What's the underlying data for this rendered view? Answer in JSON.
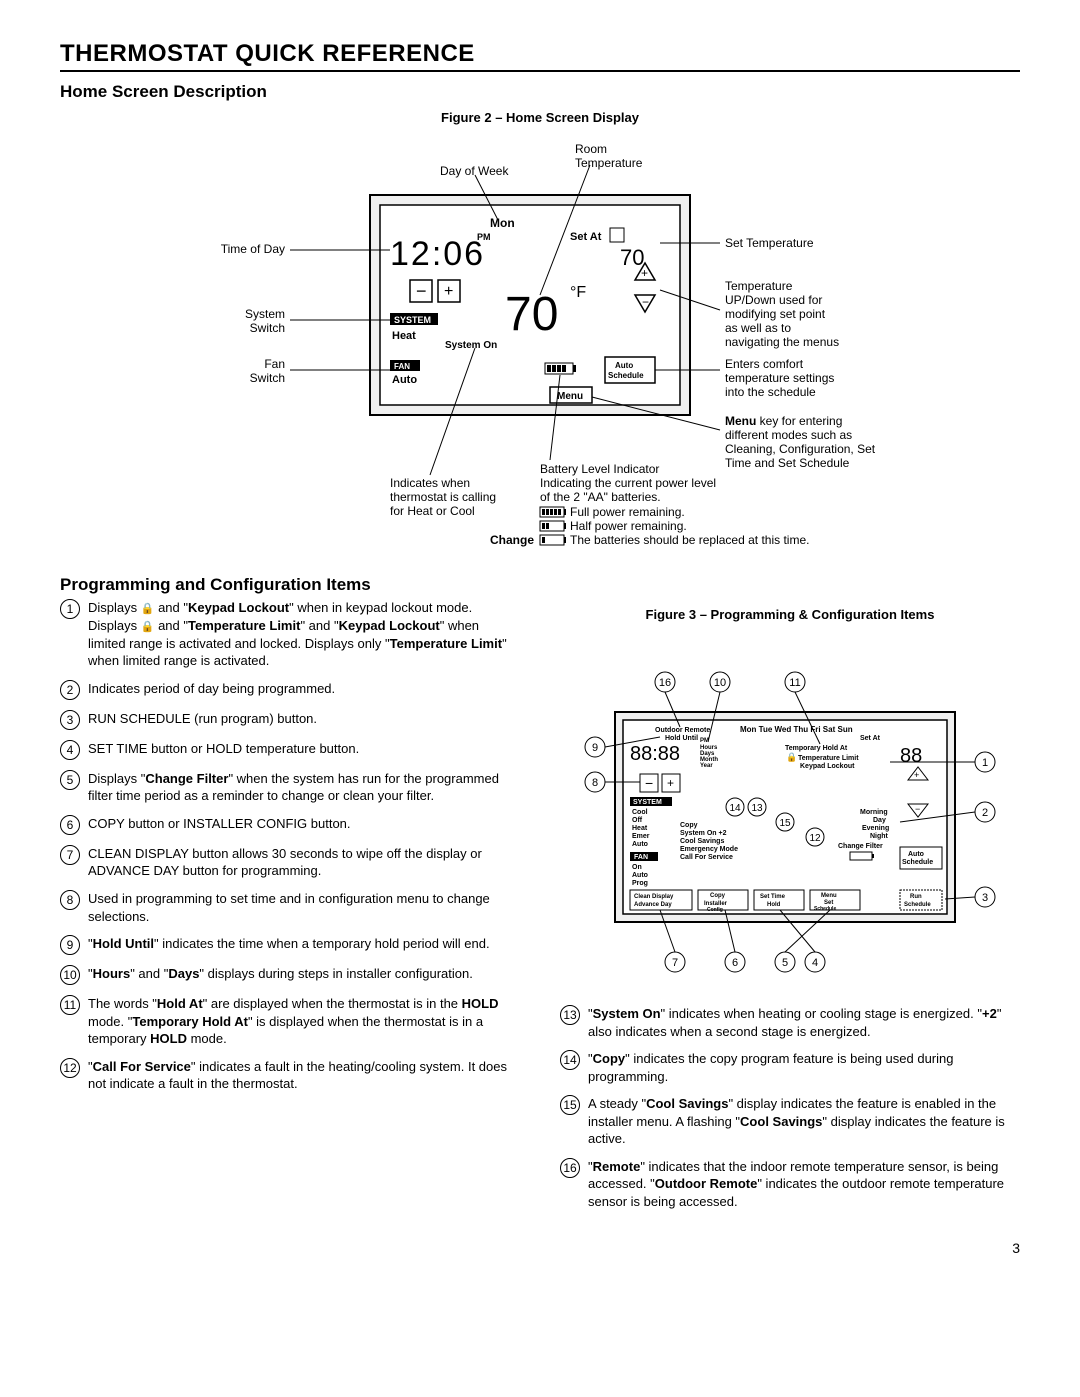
{
  "mainTitle": "THERMOSTAT QUICK REFERENCE",
  "section1Title": "Home Screen Description",
  "fig2Caption": "Figure 2 – Home Screen Display",
  "section2Title": "Programming and Configuration Items",
  "fig3Caption": "Figure 3 – Programming & Configuration Items",
  "pageNumber": "3",
  "fig2": {
    "labels": {
      "dayOfWeek": "Day of Week",
      "roomTemp": "Room\nTemperature",
      "timeOfDay": "Time of Day",
      "setTemp": "Set Temperature",
      "systemSwitch": "System\nSwitch",
      "tempUpDown": "Temperature\nUP/Down used for\nmodifying set point\nas well as to\nnavigating the menus",
      "fanSwitch": "Fan\nSwitch",
      "autoSched": "Enters comfort\ntemperature settings\ninto the schedule",
      "menuKey": "Menu key for entering\ndifferent modes such as\nCleaning, Configuration, Set\nTime and Set Schedule",
      "calling": "Indicates when\nthermostat is calling\nfor Heat or Cool",
      "battHead": "Battery Level Indicator\nIndicating the current power level\nof the 2 \"AA\" batteries.",
      "battFull": " Full power remaining.",
      "battHalf": " Half power remaining.",
      "battChange": " The batteries should be replaced at this time.",
      "changeWord": "Change"
    },
    "lcd": {
      "day": "Mon",
      "pm": "PM",
      "setAt": "Set At",
      "system": "SYSTEM",
      "heat": "Heat",
      "systemOn": "System On",
      "fan": "FAN",
      "auto": "Auto",
      "autoSchedule": "Auto\nSchedule",
      "menu": "Menu",
      "degF": "°F"
    }
  },
  "items": [
    {
      "n": "1",
      "html": "Displays <span class='lock-icon'></span> and \"<b>Keypad Lockout</b>\" when in keypad lockout mode.<br>Displays <span class='lock-icon'></span> and \"<b>Temperature Limit</b>\" and \"<b>Keypad Lockout</b>\" when limited range is activated and locked. Displays only \"<b>Temperature Limit</b>\" when limited range is activated."
    },
    {
      "n": "2",
      "html": "Indicates period of day being programmed."
    },
    {
      "n": "3",
      "html": "RUN SCHEDULE (run program) button."
    },
    {
      "n": "4",
      "html": "SET TIME button or HOLD temperature button."
    },
    {
      "n": "5",
      "html": "Displays \"<b>Change Filter</b>\" when the system has run for the programmed filter time period as a reminder to change or clean your filter."
    },
    {
      "n": "6",
      "html": "COPY button or INSTALLER CONFIG button."
    },
    {
      "n": "7",
      "html": "CLEAN DISPLAY button allows 30 seconds to wipe off the display or ADVANCE DAY button for programming."
    },
    {
      "n": "8",
      "html": "Used in programming to set time and in configuration menu to change selections."
    },
    {
      "n": "9",
      "html": "\"<b>Hold Until</b>\" indicates the time when a temporary hold period will end."
    },
    {
      "n": "10",
      "html": "\"<b>Hours</b>\" and \"<b>Days</b>\" displays during steps in installer configuration."
    },
    {
      "n": "11",
      "html": "The words \"<b>Hold At</b>\" are displayed when the thermostat is in the <b>HOLD</b> mode. \"<b>Temporary Hold At</b>\" is displayed when the thermostat is in a temporary <b>HOLD</b> mode."
    },
    {
      "n": "12",
      "html": "\"<b>Call For Service</b>\" indicates a fault in the heating/cooling system. It does not indicate a fault in the thermostat."
    }
  ],
  "itemsRight": [
    {
      "n": "13",
      "html": "\"<b>System On</b>\" indicates when heating or cooling stage is energized. \"<b>+2</b>\" also indicates when a second stage is energized."
    },
    {
      "n": "14",
      "html": "\"<b>Copy</b>\" indicates the copy program feature is being used during programming."
    },
    {
      "n": "15",
      "html": "A steady \"<b>Cool Savings</b>\" display indicates the feature is enabled in the installer menu. A flashing \"<b>Cool Savings</b>\" display indicates the feature is active."
    },
    {
      "n": "16",
      "html": "\"<b>Remote</b>\" indicates that the indoor remote temperature sensor, is being accessed. \"<b>Outdoor Remote</b>\" indicates the outdoor remote temperature sensor is being accessed."
    }
  ],
  "fig3": {
    "days": "Mon Tue Wed Thu Fri Sat Sun",
    "outdoorRemote": "Outdoor Remote",
    "holdUntil": "Hold Until",
    "pm": "PM",
    "hours": "Hours",
    "daysLbl": "Days",
    "month": "Month",
    "year": "Year",
    "setAt": "Set At",
    "tempHold": "Temporary Hold At",
    "tempLimit": "Temperature Limit",
    "keypadLock": "Keypad Lockout",
    "system": "SYSTEM",
    "cool": "Cool",
    "off": "Off",
    "heat": "Heat",
    "emer": "Emer",
    "auto": "Auto",
    "copy": "Copy",
    "systemOn2": "System On +2",
    "coolSavings": "Cool Savings",
    "emergencyMode": "Emergency Mode",
    "callForService": "Call For Service",
    "morning": "Morning",
    "day": "Day",
    "evening": "Evening",
    "night": "Night",
    "changeFilter": "Change Filter",
    "fan": "FAN",
    "on": "On",
    "prog": "Prog",
    "autoSchedule": "Auto\nSchedule",
    "cleanDisplay": "Clean Display",
    "advanceDay": "Advance Day",
    "copyBtn": "Copy",
    "installerConfig": "Installer\nConfig",
    "setTime": "Set Time",
    "hold": "Hold",
    "menuBtn": "Menu",
    "setSchedule": "Set\nSchedule",
    "runSchedule": "Run\nSchedule"
  }
}
